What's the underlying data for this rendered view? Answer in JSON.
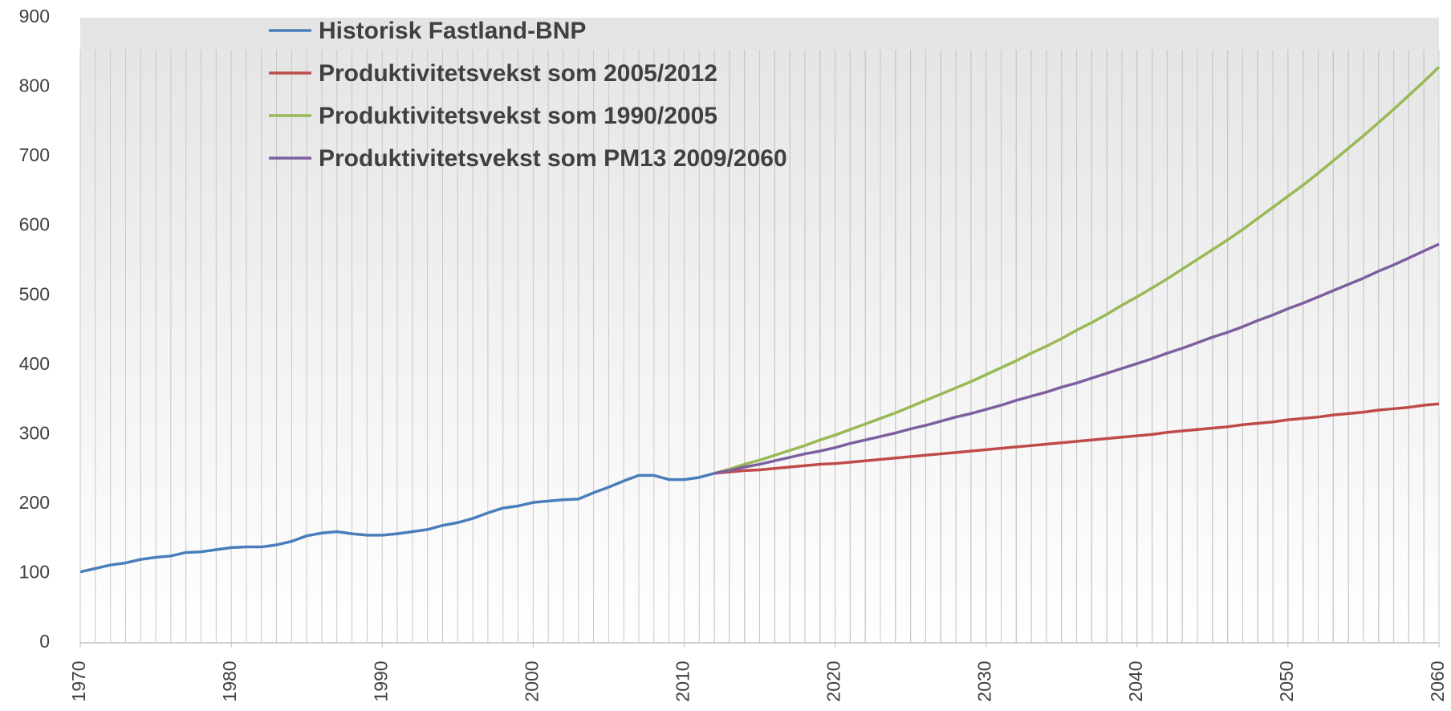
{
  "chart_data": {
    "type": "line",
    "series": [
      {
        "name": "Historisk Fastland-BNP",
        "color": "#4a7ebb",
        "x": [
          1970,
          1971,
          1972,
          1973,
          1974,
          1975,
          1976,
          1977,
          1978,
          1979,
          1980,
          1981,
          1982,
          1983,
          1984,
          1985,
          1986,
          1987,
          1988,
          1989,
          1990,
          1991,
          1992,
          1993,
          1994,
          1995,
          1996,
          1997,
          1998,
          1999,
          2000,
          2001,
          2002,
          2003,
          2004,
          2005,
          2006,
          2007,
          2008,
          2009,
          2010,
          2011,
          2012
        ],
        "values": [
          102,
          107,
          112,
          115,
          120,
          123,
          125,
          130,
          131,
          134,
          137,
          138,
          138,
          141,
          146,
          154,
          158,
          160,
          157,
          155,
          155,
          157,
          160,
          163,
          169,
          173,
          179,
          187,
          194,
          197,
          202,
          204,
          206,
          207,
          216,
          224,
          233,
          241,
          241,
          235,
          235,
          238,
          244
        ]
      },
      {
        "name": "Produktivitetsvekst som 2005/2012",
        "color": "#be4b48",
        "x": [
          2012,
          2013,
          2014,
          2015,
          2016,
          2017,
          2018,
          2019,
          2020,
          2021,
          2022,
          2023,
          2024,
          2025,
          2026,
          2027,
          2028,
          2029,
          2030,
          2031,
          2032,
          2033,
          2034,
          2035,
          2036,
          2037,
          2038,
          2039,
          2040,
          2041,
          2042,
          2043,
          2044,
          2045,
          2046,
          2047,
          2048,
          2049,
          2050,
          2051,
          2052,
          2053,
          2054,
          2055,
          2056,
          2057,
          2058,
          2059,
          2060
        ],
        "values": [
          244,
          246,
          248,
          249,
          251,
          253,
          255,
          257,
          258,
          260,
          262,
          264,
          266,
          268,
          270,
          272,
          274,
          276,
          278,
          280,
          282,
          284,
          286,
          288,
          290,
          292,
          294,
          296,
          298,
          300,
          303,
          305,
          307,
          309,
          311,
          314,
          316,
          318,
          321,
          323,
          325,
          328,
          330,
          332,
          335,
          337,
          339,
          342,
          344
        ]
      },
      {
        "name": "Produktivitetsvekst som 1990/2005",
        "color": "#98b954",
        "x": [
          2012,
          2013,
          2014,
          2015,
          2016,
          2017,
          2018,
          2019,
          2020,
          2021,
          2022,
          2023,
          2024,
          2025,
          2026,
          2027,
          2028,
          2029,
          2030,
          2031,
          2032,
          2033,
          2034,
          2035,
          2036,
          2037,
          2038,
          2039,
          2040,
          2041,
          2042,
          2043,
          2044,
          2045,
          2046,
          2047,
          2048,
          2049,
          2050,
          2051,
          2052,
          2053,
          2054,
          2055,
          2056,
          2057,
          2058,
          2059,
          2060
        ],
        "values": [
          244,
          250,
          257,
          263,
          270,
          277,
          284,
          292,
          299,
          307,
          315,
          323,
          331,
          340,
          349,
          358,
          367,
          376,
          386,
          396,
          406,
          417,
          427,
          438,
          450,
          461,
          473,
          486,
          498,
          511,
          524,
          538,
          552,
          566,
          580,
          595,
          611,
          627,
          643,
          659,
          676,
          694,
          712,
          730,
          749,
          768,
          788,
          808,
          829
        ]
      },
      {
        "name": "Produktivitetsvekst som PM13 2009/2060",
        "color": "#7d5fa0",
        "x": [
          2012,
          2013,
          2014,
          2015,
          2016,
          2017,
          2018,
          2019,
          2020,
          2021,
          2022,
          2023,
          2024,
          2025,
          2026,
          2027,
          2028,
          2029,
          2030,
          2031,
          2032,
          2033,
          2034,
          2035,
          2036,
          2037,
          2038,
          2039,
          2040,
          2041,
          2042,
          2043,
          2044,
          2045,
          2046,
          2047,
          2048,
          2049,
          2050,
          2051,
          2052,
          2053,
          2054,
          2055,
          2056,
          2057,
          2058,
          2059,
          2060
        ],
        "values": [
          244,
          248,
          253,
          257,
          262,
          267,
          272,
          276,
          281,
          287,
          292,
          297,
          302,
          308,
          313,
          319,
          325,
          330,
          336,
          342,
          349,
          355,
          361,
          368,
          374,
          381,
          388,
          395,
          402,
          409,
          417,
          424,
          432,
          440,
          447,
          455,
          464,
          472,
          481,
          489,
          498,
          507,
          516,
          525,
          535,
          544,
          554,
          564,
          574
        ]
      }
    ],
    "xlim": [
      1970,
      2060
    ],
    "xticks": [
      1970,
      1980,
      1990,
      2000,
      2010,
      2020,
      2030,
      2040,
      2050,
      2060
    ],
    "ylim": [
      0,
      900
    ],
    "yticks": [
      0,
      100,
      200,
      300,
      400,
      500,
      600,
      700,
      800,
      900
    ],
    "grid": true,
    "legend": "upper left"
  }
}
